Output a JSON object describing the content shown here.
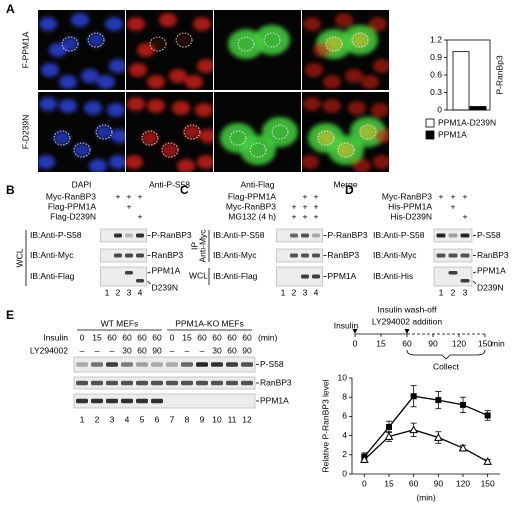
{
  "panel_a": {
    "letter": "A",
    "row_labels": [
      "F-PPM1A",
      "F-D239N"
    ],
    "column_labels": [
      "DAPI",
      "Anti-P-S58",
      "Anti-Flag",
      "Merge"
    ]
  },
  "panel_b": {
    "letter": "B",
    "conditions": [
      {
        "label": "Myc-RanBP3",
        "marks": [
          null,
          "+",
          "+",
          "+"
        ]
      },
      {
        "label": "Flag-PPM1A",
        "marks": [
          null,
          null,
          "+",
          null
        ]
      },
      {
        "label": "Flag-D239N",
        "marks": [
          null,
          null,
          null,
          "+"
        ]
      }
    ],
    "blots": [
      {
        "antibody": "IB:Anti-P-S58",
        "bands": [
          "P-RanBP3"
        ]
      },
      {
        "antibody": "IB:Anti-Myc",
        "bands": [
          "RanBP3"
        ]
      },
      {
        "antibody": "IB:Anti-Flag",
        "bands": [
          "PPM1A",
          "D239N"
        ]
      }
    ],
    "side_label": "WCL",
    "lanes": [
      1,
      2,
      3,
      4
    ]
  },
  "panel_c": {
    "letter": "C",
    "conditions": [
      {
        "label": "Flag-PPM1A",
        "marks": [
          null,
          null,
          "+",
          "+"
        ]
      },
      {
        "label": "Myc-RanBP3",
        "marks": [
          null,
          "+",
          "+",
          "+"
        ]
      },
      {
        "label": "MG132 (4 h)",
        "marks": [
          null,
          "+",
          "+",
          "+"
        ]
      }
    ],
    "blots": [
      {
        "antibody": "IB:Anti-P-S58",
        "bands": [
          "P-RanBP3"
        ]
      },
      {
        "antibody": "IB:Anti-Myc",
        "bands": [
          "RanBP3"
        ]
      },
      {
        "antibody": "IB:Anti-Flag",
        "bands": [
          "PPM1A"
        ]
      }
    ],
    "ip_labels": [
      "IP",
      "Anti-Myc"
    ],
    "side_label": "WCL",
    "lanes": [
      1,
      2,
      3,
      4
    ]
  },
  "panel_d": {
    "letter": "D",
    "conditions": [
      {
        "label": "Myc-RanBP3",
        "marks": [
          "+",
          "+",
          "+"
        ]
      },
      {
        "label": "His-PPM1A",
        "marks": [
          null,
          "+",
          null
        ]
      },
      {
        "label": "His-D239N",
        "marks": [
          null,
          null,
          "+"
        ]
      }
    ],
    "blots": [
      {
        "antibody": "IB:Anti-P-S58",
        "bands": [
          "P-S58"
        ]
      },
      {
        "antibody": "IB:Anti-Myc",
        "bands": [
          "RanBP3"
        ]
      },
      {
        "antibody": "IB:Anti-His",
        "bands": [
          "PPM1A",
          "D239N"
        ]
      }
    ],
    "lanes": [
      1,
      2,
      3
    ]
  },
  "panel_e": {
    "letter": "E",
    "groups": [
      "WT MEFs",
      "PPM1A-KO MEFs"
    ],
    "conditions": [
      {
        "label": "Insulin",
        "marks": [
          0,
          15,
          60,
          60,
          60,
          60,
          0,
          15,
          60,
          60,
          60,
          60
        ],
        "unit": "(min)"
      },
      {
        "label": "LY294002",
        "marks": [
          "–",
          "–",
          "–",
          30,
          60,
          90,
          "–",
          "–",
          "–",
          30,
          60,
          90
        ]
      }
    ],
    "blots": [
      "P-S58",
      "RanBP3",
      "PPM1A"
    ],
    "lanes": [
      1,
      2,
      3,
      4,
      5,
      6,
      7,
      8,
      9,
      10,
      11,
      12
    ],
    "timeline": {
      "start_label": "Insulin",
      "event_labels": [
        "Insulin wash-off",
        "LY294002 addition"
      ],
      "ticks": [
        0,
        15,
        60,
        90,
        120,
        150
      ],
      "unit": "min",
      "collect_label": "Collect"
    }
  },
  "chart_data": [
    {
      "type": "bar",
      "ylabel": "P-RanBp3",
      "ylim": [
        0,
        1.2
      ],
      "yticks": [
        0,
        0.3,
        0.6,
        0.9,
        1.2
      ],
      "series": [
        {
          "name": "PPM1A-D239N",
          "color": "#ffffff",
          "values": [
            1.0
          ]
        },
        {
          "name": "PPM1A",
          "color": "#000000",
          "values": [
            0.06
          ]
        }
      ]
    },
    {
      "type": "line",
      "ylabel": "Relative P-RanBP3 level",
      "xlabel": "(min)",
      "categories": [
        "0",
        "15",
        "60",
        "90",
        "120",
        "150"
      ],
      "ylim": [
        0,
        10
      ],
      "yticks": [
        0,
        2,
        4,
        6,
        8,
        10
      ],
      "series": [
        {
          "marker": "square",
          "color": "#000000",
          "values": [
            1.8,
            4.9,
            8.1,
            7.7,
            7.2,
            6.1
          ],
          "errors": [
            0.4,
            0.6,
            1.1,
            0.9,
            0.8,
            0.5
          ]
        },
        {
          "marker": "triangle",
          "color": "#000000",
          "values": [
            1.5,
            3.9,
            4.6,
            3.8,
            2.7,
            1.3
          ],
          "errors": [
            0.3,
            0.5,
            0.7,
            0.6,
            0.3,
            0.2
          ]
        }
      ]
    }
  ]
}
